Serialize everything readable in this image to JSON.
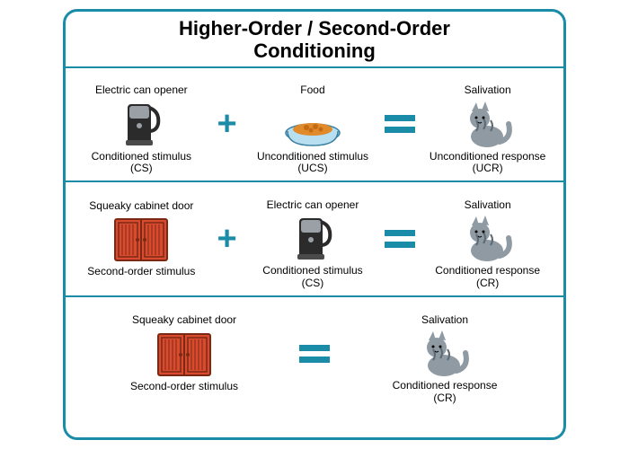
{
  "title_line1": "Higher-Order / Second-Order",
  "title_line2": "Conditioning",
  "colors": {
    "border": "#1a8ca8",
    "operator": "#1a8ca8",
    "text": "#000000",
    "cabinet_fill": "#d94a2e",
    "cabinet_frame": "#7a2a14",
    "opener_body": "#2b2b2b",
    "opener_hilite": "#9aa0a6",
    "bowl": "#b7dff0",
    "food": "#e08a2a",
    "cat_body": "#8f9aa3",
    "cat_stripe": "#5e6a73"
  },
  "symbols": {
    "plus": "+",
    "equals": "="
  },
  "rows": [
    {
      "cells": [
        {
          "top": "Electric can opener",
          "bottom": "Conditioned stimulus (CS)",
          "icon": "opener"
        },
        {
          "op": "plus"
        },
        {
          "top": "Food",
          "bottom": "Unconditioned stimulus (UCS)",
          "icon": "bowl"
        },
        {
          "op": "equals"
        },
        {
          "top": "Salivation",
          "bottom": "Unconditioned response (UCR)",
          "icon": "cat"
        }
      ]
    },
    {
      "cells": [
        {
          "top": "Squeaky cabinet door",
          "bottom": "Second-order stimulus",
          "icon": "cabinet"
        },
        {
          "op": "plus"
        },
        {
          "top": "Electric can opener",
          "bottom": "Conditioned stimulus (CS)",
          "icon": "opener"
        },
        {
          "op": "equals"
        },
        {
          "top": "Salivation",
          "bottom": "Conditioned response (CR)",
          "icon": "cat"
        }
      ]
    },
    {
      "cells": [
        {
          "top": "Squeaky cabinet door",
          "bottom": "Second-order stimulus",
          "icon": "cabinet"
        },
        {
          "op": "equals"
        },
        {
          "top": "Salivation",
          "bottom": "Conditioned response (CR)",
          "icon": "cat"
        }
      ]
    }
  ]
}
